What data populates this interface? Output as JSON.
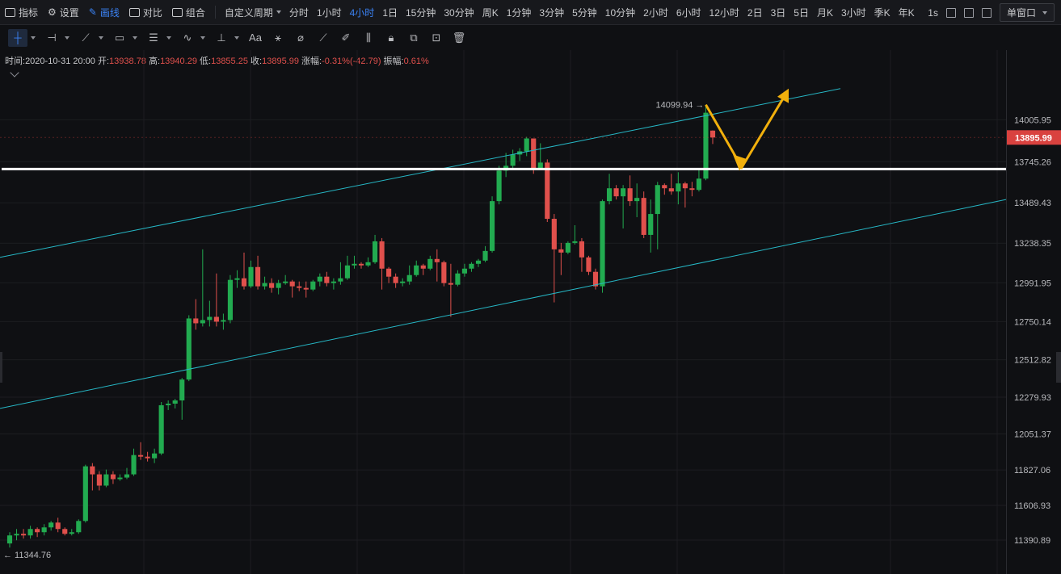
{
  "topbar": {
    "indicators_label": "指标",
    "settings_label": "设置",
    "drawing_label": "画线",
    "compare_label": "对比",
    "combine_label": "组合",
    "custom_period_label": "自定义周期",
    "periods": [
      "分时",
      "1小时",
      "4小时",
      "1日",
      "15分钟",
      "30分钟",
      "周K",
      "1分钟",
      "3分钟",
      "5分钟",
      "10分钟",
      "2小时",
      "6小时",
      "12小时",
      "2日",
      "3日",
      "5日",
      "月K",
      "3小时",
      "季K",
      "年K"
    ],
    "active_period": "4小时",
    "interval_label": "1s",
    "window_label": "单窗口"
  },
  "drawing_tools": [
    "crosshair",
    "horizontal-line",
    "trend-line",
    "rectangle",
    "parallel-lines",
    "wave",
    "measure",
    "text",
    "brush",
    "eraser",
    "ruler",
    "pencil",
    "pattern",
    "lock",
    "copy",
    "hide",
    "delete"
  ],
  "info": {
    "time_label": "时间:",
    "time_value": "2020-10-31 20:00",
    "open_label": "开:",
    "open_value": "13938.78",
    "high_label": "高:",
    "high_value": "13940.29",
    "low_label": "低:",
    "low_value": "13855.25",
    "close_label": "收:",
    "close_value": "13895.99",
    "change_label": "涨幅:",
    "change_value": "-0.31%(-42.79)",
    "amplitude_label": "振幅:",
    "amplitude_value": "0.61%"
  },
  "colors": {
    "up": "#22ab50",
    "down": "#e0504c",
    "channel": "#26b7c5",
    "level": "#ffffff",
    "arrow": "#f2b00c",
    "price_tag": "#d9423f"
  },
  "chart_data": {
    "type": "candlestick",
    "ylim": [
      11180,
      14440
    ],
    "y_ticks": [
      14005.95,
      13745.26,
      13489.43,
      13238.35,
      12991.95,
      12750.14,
      12512.82,
      12279.93,
      12051.37,
      11827.06,
      11606.93,
      11390.89
    ],
    "last_price": 13895.99,
    "max_label": "14099.94",
    "min_label": "11344.76",
    "horizontal_level": 13700,
    "channel_upper": {
      "start_price": 13150,
      "end_price": 14200
    },
    "channel_lower": {
      "start_price": 12210,
      "end_price": 13510
    },
    "projection_arrow": [
      14099.94,
      13710,
      14180
    ],
    "candles": [
      [
        11370,
        11420,
        11440,
        11344.76
      ],
      [
        11420,
        11430,
        11460,
        11390
      ],
      [
        11430,
        11420,
        11460,
        11400
      ],
      [
        11420,
        11460,
        11480,
        11400
      ],
      [
        11460,
        11440,
        11470,
        11410
      ],
      [
        11440,
        11470,
        11490,
        11420
      ],
      [
        11470,
        11500,
        11510,
        11450
      ],
      [
        11500,
        11460,
        11530,
        11440
      ],
      [
        11460,
        11430,
        11470,
        11420
      ],
      [
        11430,
        11440,
        11460,
        11420
      ],
      [
        11440,
        11510,
        11520,
        11430
      ],
      [
        11510,
        11850,
        11860,
        11500
      ],
      [
        11850,
        11800,
        11870,
        11700
      ],
      [
        11800,
        11730,
        11820,
        11700
      ],
      [
        11730,
        11800,
        11830,
        11720
      ],
      [
        11800,
        11770,
        11820,
        11740
      ],
      [
        11770,
        11780,
        11800,
        11760
      ],
      [
        11780,
        11800,
        11840,
        11770
      ],
      [
        11800,
        11920,
        11960,
        11790
      ],
      [
        11920,
        11910,
        12000,
        11890
      ],
      [
        11910,
        11900,
        11940,
        11880
      ],
      [
        11900,
        11930,
        11960,
        11870
      ],
      [
        11930,
        12230,
        12250,
        11920
      ],
      [
        12230,
        12240,
        12260,
        12200
      ],
      [
        12240,
        12260,
        12270,
        12210
      ],
      [
        12260,
        12390,
        12400,
        12140
      ],
      [
        12390,
        12770,
        12790,
        12380
      ],
      [
        12770,
        12740,
        12890,
        12700
      ],
      [
        12740,
        12760,
        13200,
        12720
      ],
      [
        12760,
        12780,
        12880,
        12720
      ],
      [
        12780,
        12750,
        13050,
        12720
      ],
      [
        12750,
        12760,
        12800,
        12700
      ],
      [
        12760,
        13010,
        13040,
        12740
      ],
      [
        13010,
        13020,
        13070,
        12960
      ],
      [
        13020,
        12970,
        13180,
        12950
      ],
      [
        12970,
        13090,
        13130,
        12960
      ],
      [
        13090,
        12970,
        13160,
        12950
      ],
      [
        12970,
        12990,
        13030,
        12950
      ],
      [
        12990,
        12960,
        13020,
        12930
      ],
      [
        12960,
        12990,
        13010,
        12920
      ],
      [
        12990,
        13000,
        13040,
        12980
      ],
      [
        13000,
        12970,
        13010,
        12900
      ],
      [
        12970,
        12960,
        13000,
        12940
      ],
      [
        12960,
        12950,
        13000,
        12900
      ],
      [
        12950,
        13000,
        13010,
        12940
      ],
      [
        13000,
        13030,
        13050,
        12970
      ],
      [
        13030,
        12990,
        13060,
        12970
      ],
      [
        12990,
        13000,
        13020,
        12950
      ],
      [
        13000,
        13020,
        13120,
        12980
      ],
      [
        13020,
        13100,
        13160,
        13010
      ],
      [
        13100,
        13110,
        13160,
        13080
      ],
      [
        13110,
        13100,
        13120,
        13080
      ],
      [
        13100,
        13120,
        13150,
        13090
      ],
      [
        13120,
        13250,
        13290,
        13110
      ],
      [
        13250,
        13080,
        13270,
        12950
      ],
      [
        13080,
        13030,
        13090,
        12990
      ],
      [
        13030,
        12990,
        13050,
        12960
      ],
      [
        12990,
        13000,
        13020,
        12970
      ],
      [
        13000,
        13040,
        13100,
        12980
      ],
      [
        13040,
        13100,
        13130,
        13030
      ],
      [
        13100,
        13080,
        13110,
        13040
      ],
      [
        13080,
        13140,
        13160,
        13070
      ],
      [
        13140,
        13120,
        13200,
        13000
      ],
      [
        13120,
        12990,
        13130,
        12970
      ],
      [
        12990,
        12980,
        13110,
        12780
      ],
      [
        12980,
        13050,
        13070,
        12970
      ],
      [
        13050,
        13080,
        13110,
        13030
      ],
      [
        13080,
        13110,
        13120,
        13060
      ],
      [
        13110,
        13130,
        13140,
        13090
      ],
      [
        13130,
        13190,
        13220,
        13120
      ],
      [
        13190,
        13500,
        13530,
        13180
      ],
      [
        13500,
        13690,
        13720,
        13480
      ],
      [
        13690,
        13720,
        13800,
        13650
      ],
      [
        13720,
        13790,
        13820,
        13700
      ],
      [
        13790,
        13810,
        13830,
        13750
      ],
      [
        13810,
        13890,
        13900,
        13780
      ],
      [
        13890,
        13700,
        13880,
        13670
      ],
      [
        13700,
        13740,
        13860,
        13700
      ],
      [
        13740,
        13390,
        13760,
        13370
      ],
      [
        13390,
        13200,
        13420,
        12870
      ],
      [
        13200,
        13180,
        13240,
        13040
      ],
      [
        13180,
        13240,
        13250,
        13170
      ],
      [
        13240,
        13250,
        13350,
        13230
      ],
      [
        13250,
        13150,
        13270,
        13060
      ],
      [
        13150,
        13060,
        13160,
        13040
      ],
      [
        13060,
        12970,
        13080,
        12950
      ],
      [
        12970,
        13500,
        13510,
        12930
      ],
      [
        13500,
        13580,
        13670,
        13480
      ],
      [
        13580,
        13530,
        13600,
        13510
      ],
      [
        13530,
        13580,
        13600,
        13330
      ],
      [
        13580,
        13500,
        13660,
        13470
      ],
      [
        13500,
        13520,
        13610,
        13400
      ],
      [
        13520,
        13290,
        13560,
        13270
      ],
      [
        13290,
        13420,
        13510,
        13180
      ],
      [
        13420,
        13600,
        13620,
        13200
      ],
      [
        13600,
        13580,
        13610,
        13540
      ],
      [
        13580,
        13560,
        13670,
        13540
      ],
      [
        13560,
        13610,
        13680,
        13480
      ],
      [
        13610,
        13580,
        13620,
        13460
      ],
      [
        13580,
        13570,
        13620,
        13530
      ],
      [
        13570,
        13640,
        13700,
        13560
      ],
      [
        13640,
        14050,
        14099.94,
        13630
      ],
      [
        13938.78,
        13895.99,
        13940.29,
        13855.25
      ]
    ]
  }
}
